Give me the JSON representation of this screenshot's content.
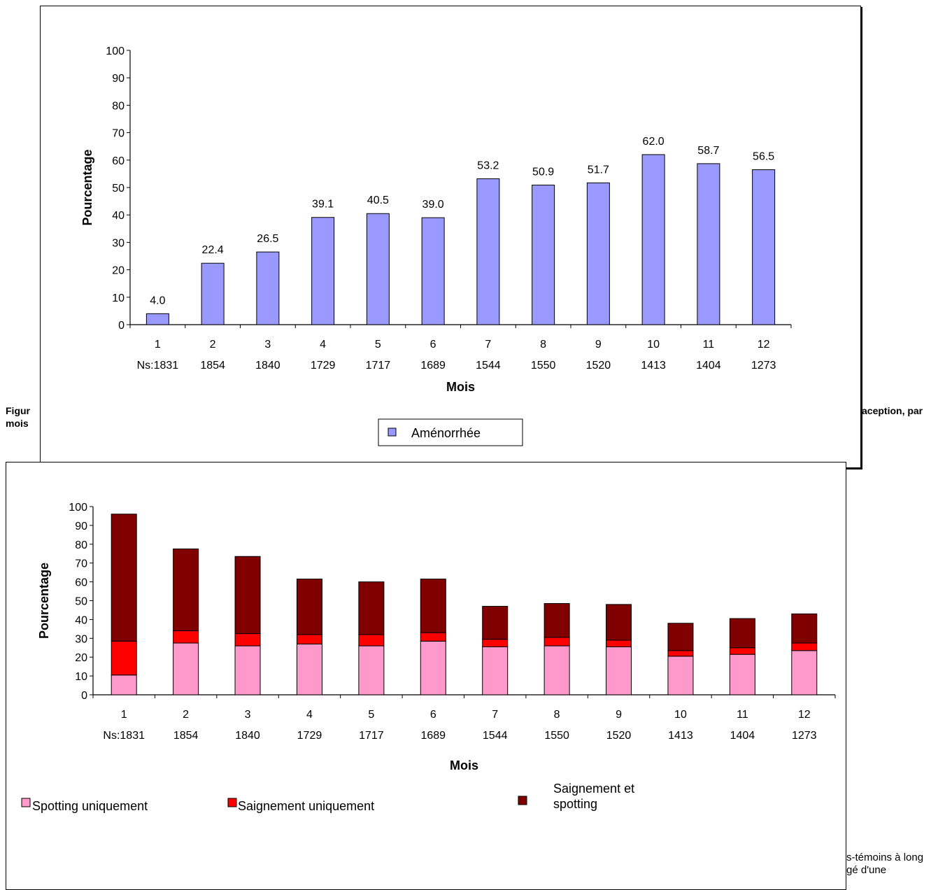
{
  "background": {
    "caption1_line1_left": "Figur",
    "caption1_line2_left": "mois",
    "caption1_right": "aception, par",
    "caption2_line1": "s-témoins à long",
    "caption2_line2": "gé d'une"
  },
  "chart_data": [
    {
      "type": "bar",
      "title": "",
      "xlabel": "Mois",
      "ylabel": "Pourcentage",
      "ylim": [
        0,
        100
      ],
      "yticks": [
        0,
        10,
        20,
        30,
        40,
        50,
        60,
        70,
        80,
        90,
        100
      ],
      "categories": [
        "1",
        "2",
        "3",
        "4",
        "5",
        "6",
        "7",
        "8",
        "9",
        "10",
        "11",
        "12"
      ],
      "category_sublabels": [
        "Ns:1831",
        "1854",
        "1840",
        "1729",
        "1717",
        "1689",
        "1544",
        "1550",
        "1520",
        "1413",
        "1404",
        "1273"
      ],
      "series": [
        {
          "name": "Aménorrhée",
          "color": "#9999ff",
          "values": [
            4.0,
            22.4,
            26.5,
            39.1,
            40.5,
            39.0,
            53.2,
            50.9,
            51.7,
            62.0,
            58.7,
            56.5
          ],
          "data_labels": [
            "4.0",
            "22.4",
            "26.5",
            "39.1",
            "40.5",
            "39.0",
            "53.2",
            "50.9",
            "51.7",
            "62.0",
            "58.7",
            "56.5"
          ]
        }
      ],
      "legend": [
        "Aménorrhée"
      ],
      "legend_position": "bottom"
    },
    {
      "type": "bar",
      "stacked": true,
      "title": "",
      "xlabel": "Mois",
      "ylabel": "Pourcentage",
      "ylim": [
        0,
        100
      ],
      "yticks": [
        0,
        10,
        20,
        30,
        40,
        50,
        60,
        70,
        80,
        90,
        100
      ],
      "categories": [
        "1",
        "2",
        "3",
        "4",
        "5",
        "6",
        "7",
        "8",
        "9",
        "10",
        "11",
        "12"
      ],
      "category_sublabels": [
        "Ns:1831",
        "1854",
        "1840",
        "1729",
        "1717",
        "1689",
        "1544",
        "1550",
        "1520",
        "1413",
        "1404",
        "1273"
      ],
      "series": [
        {
          "name": "Spotting uniquement",
          "color": "#ff99cc",
          "values": [
            10.5,
            27.5,
            26.0,
            27.0,
            26.0,
            28.5,
            25.5,
            26.0,
            25.5,
            20.5,
            21.5,
            23.5
          ]
        },
        {
          "name": "Saignement uniquement",
          "color": "#ff0000",
          "values": [
            18.0,
            6.5,
            6.5,
            5.0,
            6.0,
            4.5,
            4.0,
            4.5,
            3.5,
            3.0,
            3.5,
            4.0
          ]
        },
        {
          "name": "Saignement et spotting",
          "color": "#800000",
          "values": [
            67.5,
            43.5,
            41.0,
            29.5,
            28.0,
            28.5,
            17.5,
            18.0,
            19.0,
            14.5,
            15.5,
            15.5
          ]
        }
      ],
      "legend": [
        "Spotting uniquement",
        "Saignement uniquement",
        "Saignement et spotting"
      ],
      "legend_position": "bottom"
    }
  ]
}
